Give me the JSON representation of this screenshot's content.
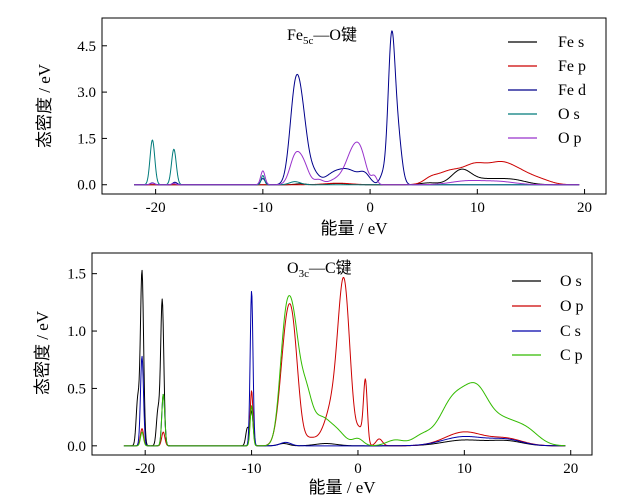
{
  "chart_data": [
    {
      "type": "line",
      "title_main": "Fe",
      "title_sub": "5c",
      "title_rest": "—O键",
      "xlabel": "能量 / eV",
      "ylabel": "态密度 / eV",
      "xlim": [
        -25,
        22
      ],
      "ylim": [
        -0.3,
        5.4
      ],
      "xticks": [
        "-20",
        "-10",
        "0",
        "10",
        "20"
      ],
      "xtick_values": [
        -20,
        -10,
        0,
        10,
        20
      ],
      "yticks": [
        "0.0",
        "1.5",
        "3.0",
        "4.5"
      ],
      "ytick_values": [
        0,
        1.5,
        3.0,
        4.5
      ],
      "xrange": [
        -22,
        19.5
      ],
      "legend_position": "top-right",
      "series": [
        {
          "name": "Fe s",
          "color": "#000000",
          "peaks": [
            [
              8.5,
              0.45,
              0.9
            ],
            [
              11,
              0.18,
              1.6
            ],
            [
              13.5,
              0.12,
              1.2
            ],
            [
              5.5,
              0.06,
              0.8
            ],
            [
              -3,
              0.04,
              1.0
            ],
            [
              -6.5,
              0.03,
              0.5
            ]
          ]
        },
        {
          "name": "Fe p",
          "color": "#cc0000",
          "peaks": [
            [
              7.5,
              0.45,
              1.3
            ],
            [
              9.8,
              0.5,
              1.0
            ],
            [
              12,
              0.62,
              1.2
            ],
            [
              14,
              0.35,
              1.2
            ],
            [
              16,
              0.12,
              1.0
            ],
            [
              5.6,
              0.12,
              0.6
            ],
            [
              -3,
              0.05,
              1.2
            ]
          ]
        },
        {
          "name": "Fe d",
          "color": "#00008b",
          "peaks": [
            [
              -7,
              2.75,
              0.5
            ],
            [
              -6.3,
              1.7,
              0.5
            ],
            [
              -5.3,
              0.35,
              0.5
            ],
            [
              -3.5,
              0.3,
              0.8
            ],
            [
              -2,
              0.45,
              0.9
            ],
            [
              -0.5,
              0.3,
              0.5
            ],
            [
              2,
              4.6,
              0.32
            ],
            [
              2.6,
              1.5,
              0.35
            ],
            [
              1.2,
              0.3,
              0.3
            ],
            [
              -10,
              0.2,
              0.2
            ],
            [
              -18.2,
              0.08,
              0.2
            ],
            [
              -20.3,
              0.06,
              0.2
            ]
          ]
        },
        {
          "name": "O s",
          "color": "#007b7b",
          "peaks": [
            [
              -20.3,
              1.45,
              0.22
            ],
            [
              -18.3,
              1.15,
              0.22
            ],
            [
              -10,
              0.3,
              0.15
            ],
            [
              -7,
              0.1,
              0.5
            ]
          ]
        },
        {
          "name": "O p",
          "color": "#9933cc",
          "peaks": [
            [
              -7,
              0.85,
              0.5
            ],
            [
              -6.2,
              0.6,
              0.5
            ],
            [
              -10,
              0.45,
              0.2
            ],
            [
              -3,
              0.18,
              0.8
            ],
            [
              -1.5,
              1.1,
              0.7
            ],
            [
              -0.8,
              0.5,
              0.5
            ],
            [
              0.4,
              0.25,
              0.25
            ],
            [
              -4.8,
              0.15,
              0.4
            ],
            [
              9,
              0.12,
              1.5
            ],
            [
              12,
              0.1,
              1.5
            ],
            [
              -20.3,
              0.05,
              0.2
            ],
            [
              -18.3,
              0.04,
              0.2
            ]
          ]
        }
      ]
    },
    {
      "type": "line",
      "title_main": "O",
      "title_sub": "3c",
      "title_rest": "—C键",
      "xlabel": "能量 / eV",
      "ylabel": "态密度 / eV",
      "xlim": [
        -25,
        22
      ],
      "ylim": [
        -0.08,
        1.68
      ],
      "xticks": [
        "-20",
        "-10",
        "0",
        "10",
        "20"
      ],
      "xtick_values": [
        -20,
        -10,
        0,
        10,
        20
      ],
      "yticks": [
        "0.0",
        "0.5",
        "1.0",
        "1.5"
      ],
      "ytick_values": [
        0,
        0.5,
        1.0,
        1.5
      ],
      "xrange": [
        -22,
        19.5
      ],
      "legend_position": "top-right",
      "series": [
        {
          "name": "O s",
          "color": "#000000",
          "peaks": [
            [
              -20.3,
              1.52,
              0.15
            ],
            [
              -20.7,
              0.4,
              0.15
            ],
            [
              -18.4,
              1.27,
              0.15
            ],
            [
              -18.8,
              0.3,
              0.15
            ],
            [
              -10,
              0.3,
              0.15
            ],
            [
              -10.4,
              0.15,
              0.15
            ],
            [
              -7,
              0.02,
              0.5
            ],
            [
              -3,
              0.02,
              1.0
            ],
            [
              10,
              0.05,
              2.0
            ],
            [
              14,
              0.04,
              1.5
            ]
          ]
        },
        {
          "name": "O p",
          "color": "#cc0000",
          "peaks": [
            [
              -6.7,
              0.95,
              0.6
            ],
            [
              -6,
              0.55,
              0.5
            ],
            [
              -1.3,
              1.3,
              0.55
            ],
            [
              -2.3,
              0.35,
              0.8
            ],
            [
              0.7,
              0.55,
              0.18
            ],
            [
              0.2,
              0.12,
              0.3
            ],
            [
              -10,
              0.48,
              0.13
            ],
            [
              -20.3,
              0.15,
              0.15
            ],
            [
              -18.3,
              0.12,
              0.15
            ],
            [
              -4.5,
              0.06,
              0.6
            ],
            [
              2,
              0.06,
              0.3
            ],
            [
              10,
              0.12,
              1.8
            ],
            [
              14,
              0.06,
              1.5
            ]
          ]
        },
        {
          "name": "C s",
          "color": "#0000aa",
          "peaks": [
            [
              -10,
              1.35,
              0.13
            ],
            [
              -20.3,
              0.78,
              0.14
            ],
            [
              -18.3,
              0.45,
              0.14
            ],
            [
              -6.8,
              0.03,
              0.5
            ],
            [
              10,
              0.08,
              2.0
            ],
            [
              14,
              0.05,
              1.5
            ]
          ]
        },
        {
          "name": "C p",
          "color": "#33bb00",
          "peaks": [
            [
              -6.8,
              1.0,
              0.55
            ],
            [
              -6.0,
              0.7,
              0.5
            ],
            [
              -5,
              0.47,
              0.6
            ],
            [
              -3.5,
              0.22,
              0.8
            ],
            [
              -2,
              0.12,
              0.8
            ],
            [
              -10,
              0.35,
              0.13
            ],
            [
              -18.3,
              0.45,
              0.14
            ],
            [
              -20.3,
              0.12,
              0.14
            ],
            [
              9,
              0.4,
              1.3
            ],
            [
              11.2,
              0.4,
              1.1
            ],
            [
              13.5,
              0.2,
              1.3
            ],
            [
              15.8,
              0.13,
              1.2
            ],
            [
              6,
              0.08,
              0.9
            ],
            [
              0,
              0.06,
              0.5
            ],
            [
              3.5,
              0.05,
              0.8
            ]
          ]
        }
      ]
    }
  ]
}
